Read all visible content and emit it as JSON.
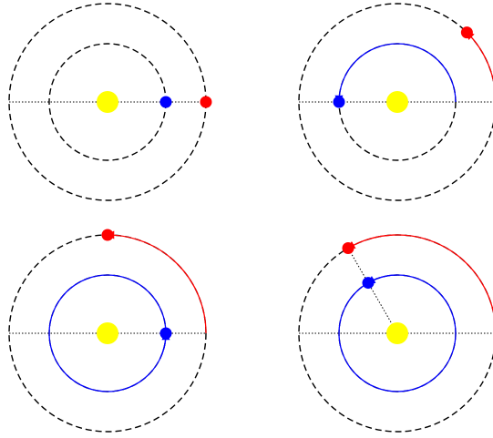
{
  "colors": {
    "background": "#ffffff",
    "sun": "#ffff00",
    "orbit_dashed": "#000000",
    "reference_line": "#000000",
    "inner_planet": "#0000ff",
    "outer_planet": "#ff0000",
    "inner_path": "#0000ff",
    "outer_path": "#ff0000"
  },
  "panels": [
    {
      "id": "top-left",
      "inner_planet_angle_deg": 0,
      "outer_planet_angle_deg": 0,
      "inner_path": null,
      "outer_path": null,
      "inner_orbit_style": "dashed",
      "connector": false
    },
    {
      "id": "top-right",
      "inner_planet_angle_deg": 180,
      "outer_planet_angle_deg": 45,
      "inner_path": {
        "from_deg": 0,
        "to_deg": 180,
        "arrow": true
      },
      "outer_path": {
        "from_deg": 0,
        "to_deg": 45,
        "arrow": true
      },
      "inner_orbit_style": "dashed",
      "connector": false
    },
    {
      "id": "bottom-left",
      "inner_planet_angle_deg": 360,
      "outer_planet_angle_deg": 90,
      "inner_path": {
        "from_deg": 0,
        "to_deg": 360,
        "arrow": true
      },
      "outer_path": {
        "from_deg": 0,
        "to_deg": 90,
        "arrow": true
      },
      "inner_orbit_style": "dashed",
      "connector": false
    },
    {
      "id": "bottom-right",
      "inner_planet_angle_deg": 480,
      "outer_planet_angle_deg": 120,
      "inner_path": {
        "from_deg": 0,
        "to_deg": 480,
        "arrow": true
      },
      "outer_path": {
        "from_deg": 0,
        "to_deg": 120,
        "arrow": true
      },
      "inner_orbit_style": "dashed",
      "connector": true
    }
  ]
}
